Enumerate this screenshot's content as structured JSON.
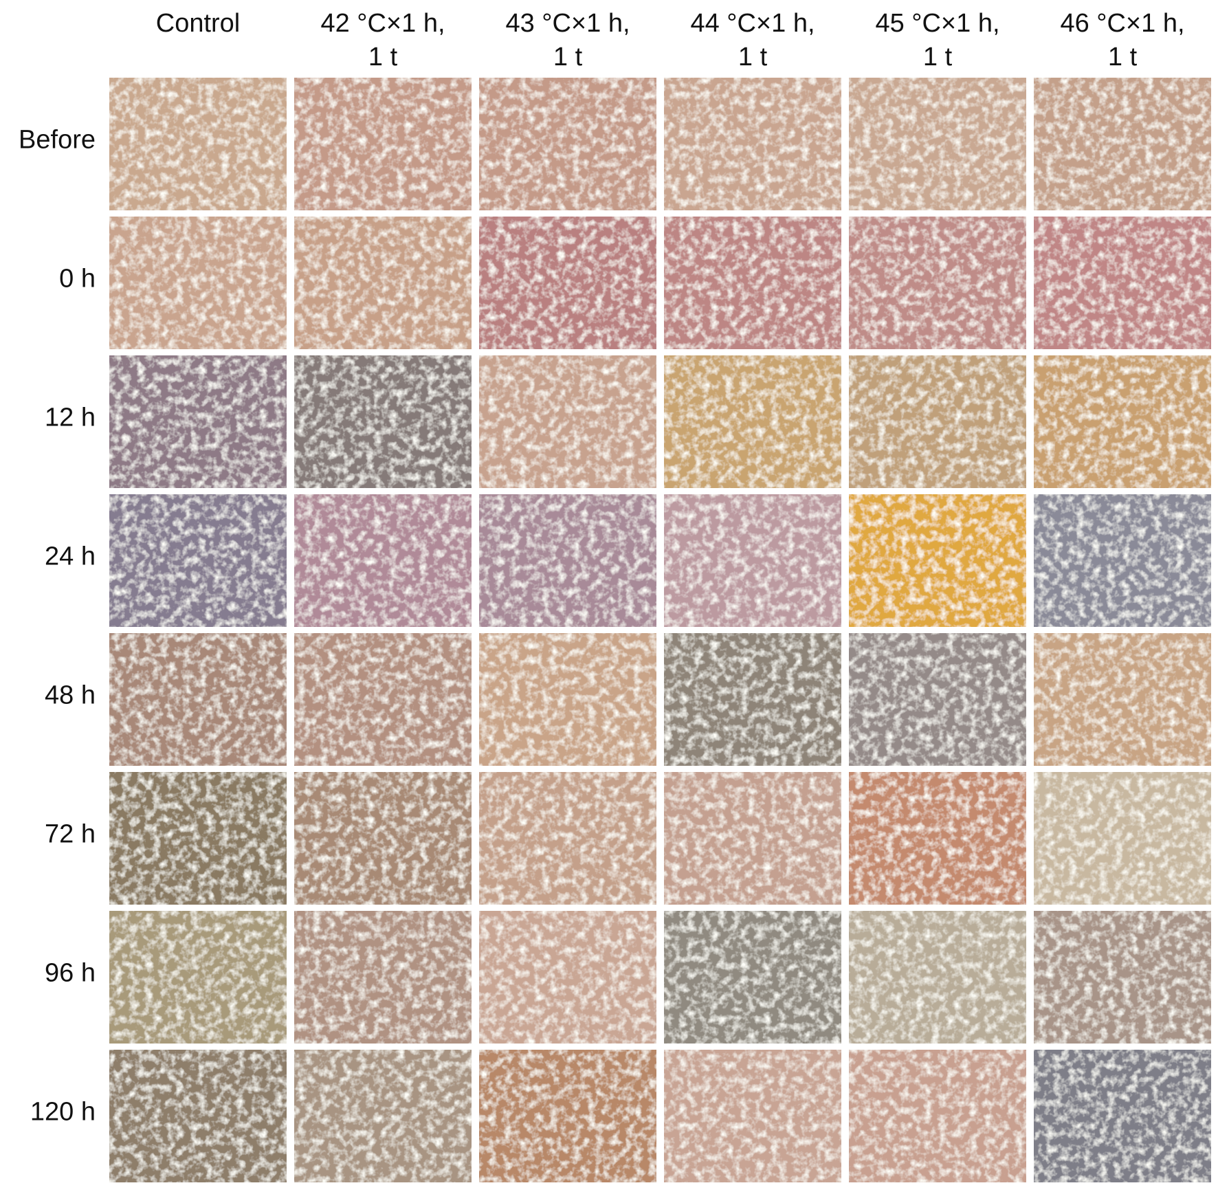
{
  "columns": [
    [
      "Control"
    ],
    [
      "42 °C×1 h,",
      "1 t"
    ],
    [
      "43 °C×1 h,",
      "1 t"
    ],
    [
      "44 °C×1 h,",
      "1 t"
    ],
    [
      "45 °C×1 h,",
      "1 t"
    ],
    [
      "46 °C×1 h,",
      "1 t"
    ]
  ],
  "rows": [
    "Before",
    "0 h",
    "12 h",
    "24 h",
    "48 h",
    "72 h",
    "96 h",
    "120 h"
  ]
}
